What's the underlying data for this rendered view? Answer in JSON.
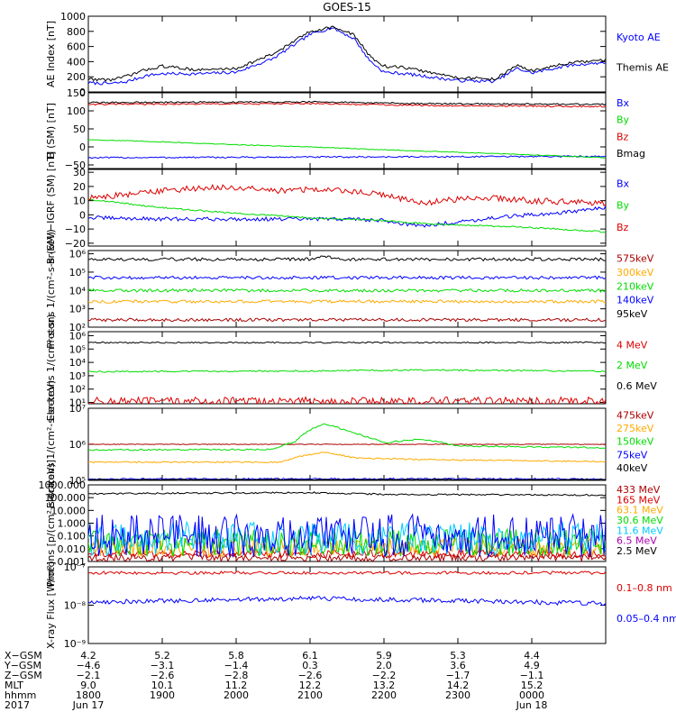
{
  "title": "GOES-15",
  "colors": {
    "black": "#000000",
    "blue": "#0000ff",
    "green": "#00dd00",
    "red": "#dd0000",
    "darkred": "#aa0000",
    "orange": "#ffaa00",
    "cyan": "#00ccff",
    "purple": "#aa00aa"
  },
  "chart_data": [
    {
      "type": "line",
      "panel": "ae",
      "ylabel": "AE Index [nT]",
      "ylim": [
        0,
        1000
      ],
      "scale": "linear",
      "yticks": [
        0,
        200,
        400,
        600,
        800,
        1000
      ],
      "yticklabels": [
        "0",
        "200",
        "400",
        "600",
        "800",
        "1000"
      ],
      "series": [
        {
          "name": "Kyoto AE",
          "color": "#0000ff",
          "label_color": "#0000ff",
          "noise": 0.02,
          "x": [
            0,
            0.3,
            0.5,
            0.8,
            1.0,
            1.5,
            2.0,
            2.5,
            3.0,
            3.3,
            3.6,
            3.8,
            4.0,
            4.3,
            4.6,
            5.0,
            5.5,
            5.8,
            6.0,
            6.5,
            7.0
          ],
          "y": [
            120,
            110,
            130,
            220,
            240,
            240,
            260,
            440,
            760,
            850,
            700,
            420,
            260,
            240,
            200,
            150,
            140,
            310,
            250,
            350,
            390
          ]
        },
        {
          "name": "Themis AE",
          "color": "#000000",
          "label_color": "#000000",
          "noise": 0.02,
          "x": [
            0,
            0.3,
            0.5,
            0.8,
            1.0,
            1.5,
            2.0,
            2.5,
            3.0,
            3.3,
            3.6,
            3.8,
            4.0,
            4.3,
            4.6,
            5.0,
            5.5,
            5.8,
            6.0,
            6.5,
            7.0
          ],
          "y": [
            170,
            160,
            200,
            300,
            340,
            290,
            310,
            500,
            800,
            860,
            750,
            480,
            340,
            320,
            260,
            190,
            170,
            350,
            280,
            380,
            420
          ]
        }
      ]
    },
    {
      "type": "line",
      "panel": "bsm",
      "ylabel": "B (SM) [nT]",
      "ylim": [
        -60,
        150
      ],
      "scale": "linear",
      "yticks": [
        -50,
        0,
        50,
        100,
        150
      ],
      "yticklabels": [
        "−50",
        "0",
        "50",
        "100",
        "150"
      ],
      "series": [
        {
          "name": "Bx",
          "color": "#0000ff",
          "label_color": "#0000ff",
          "noise": 0.01,
          "x": [
            0,
            7
          ],
          "y": [
            -30,
            -26
          ]
        },
        {
          "name": "By",
          "color": "#00dd00",
          "label_color": "#00dd00",
          "noise": 0.005,
          "x": [
            0,
            1,
            2,
            3,
            4,
            5,
            6,
            7
          ],
          "y": [
            20,
            14,
            6,
            0,
            -8,
            -15,
            -22,
            -30
          ]
        },
        {
          "name": "Bz",
          "color": "#dd0000",
          "label_color": "#dd0000",
          "noise": 0.01,
          "x": [
            0,
            3,
            4.5,
            7
          ],
          "y": [
            118,
            120,
            115,
            112
          ]
        },
        {
          "name": "Bmag",
          "color": "#000000",
          "label_color": "#000000",
          "noise": 0.01,
          "x": [
            0,
            3,
            4.5,
            7
          ],
          "y": [
            123,
            125,
            120,
            118
          ]
        }
      ]
    },
    {
      "type": "line",
      "panel": "bigrf",
      "ylabel": "B (SM)−IGRF (SM) [nT]",
      "ylim": [
        -22,
        32
      ],
      "scale": "linear",
      "yticks": [
        -20,
        -10,
        0,
        10,
        20,
        30
      ],
      "yticklabels": [
        "−20",
        "−10",
        "0",
        "10",
        "20",
        "30"
      ],
      "series": [
        {
          "name": "Bx",
          "color": "#0000ff",
          "label_color": "#0000ff",
          "noise": 0.025,
          "x": [
            0,
            1,
            2,
            3,
            3.6,
            4,
            4.5,
            5,
            5.5,
            6,
            6.5,
            7
          ],
          "y": [
            -2,
            -3,
            -3,
            -3,
            -3,
            -4,
            -8,
            -5,
            -2,
            0,
            2,
            5
          ]
        },
        {
          "name": "By",
          "color": "#00dd00",
          "label_color": "#00dd00",
          "noise": 0.01,
          "x": [
            0,
            1,
            2,
            3,
            4,
            4.5,
            5,
            6,
            7
          ],
          "y": [
            11,
            5,
            1,
            -2,
            -4,
            -6,
            -7,
            -9,
            -12
          ]
        },
        {
          "name": "Bz",
          "color": "#dd0000",
          "label_color": "#dd0000",
          "noise": 0.04,
          "x": [
            0,
            0.5,
            1,
            1.5,
            2,
            2.5,
            3,
            3.5,
            4,
            4.5,
            5,
            5.5,
            6,
            6.5,
            7
          ],
          "y": [
            12,
            14,
            17,
            19,
            19,
            17,
            18,
            17,
            14,
            8,
            11,
            12,
            10,
            9,
            8
          ]
        }
      ]
    },
    {
      "type": "line",
      "panel": "protons1",
      "ylabel": "Protons 1/(cm²-s-sr-keV)",
      "ylim": [
        100,
        1500000
      ],
      "scale": "log",
      "yticks": [
        100,
        1000,
        10000,
        100000,
        1000000
      ],
      "yticklabels": [
        "10²",
        "10³",
        "10⁴",
        "10⁵",
        "10⁶"
      ],
      "series": [
        {
          "name": "575keV",
          "color": "#aa0000",
          "label_color": "#aa0000",
          "noise": 0.02,
          "x": [
            0,
            7
          ],
          "y": [
            250,
            250
          ]
        },
        {
          "name": "300keV",
          "color": "#ffaa00",
          "label_color": "#ffaa00",
          "noise": 0.02,
          "x": [
            0,
            7
          ],
          "y": [
            2500,
            2500
          ]
        },
        {
          "name": "210keV",
          "color": "#00dd00",
          "label_color": "#00dd00",
          "noise": 0.02,
          "x": [
            0,
            7
          ],
          "y": [
            10000,
            10000
          ]
        },
        {
          "name": "140keV",
          "color": "#0000ff",
          "label_color": "#0000ff",
          "noise": 0.02,
          "x": [
            0,
            7
          ],
          "y": [
            50000,
            50000
          ]
        },
        {
          "name": "95keV",
          "color": "#000000",
          "label_color": "#000000",
          "noise": 0.02,
          "x": [
            0,
            3,
            3.2,
            3.4,
            7
          ],
          "y": [
            500000,
            500000,
            750000,
            500000,
            500000
          ]
        }
      ]
    },
    {
      "type": "line",
      "panel": "electrons1",
      "ylabel": "Electrons 1/(cm²-s-sr)",
      "ylim": [
        8,
        2000000
      ],
      "scale": "log",
      "yticks": [
        10,
        100,
        1000,
        10000,
        100000,
        1000000
      ],
      "yticklabels": [
        "10¹",
        "10²",
        "10³",
        "10⁴",
        "10⁵",
        "10⁶"
      ],
      "series": [
        {
          "name": "4 MeV",
          "color": "#dd0000",
          "label_color": "#dd0000",
          "noise": 0.06,
          "x": [
            0,
            7
          ],
          "y": [
            12,
            12
          ]
        },
        {
          "name": "2 MeV",
          "color": "#00dd00",
          "label_color": "#00dd00",
          "noise": 0.01,
          "x": [
            0,
            3,
            4.5,
            7
          ],
          "y": [
            2000,
            2300,
            2700,
            2200
          ]
        },
        {
          "name": "0.6 MeV",
          "color": "#000000",
          "label_color": "#000000",
          "noise": 0.01,
          "x": [
            0,
            7
          ],
          "y": [
            300000,
            310000
          ]
        }
      ]
    },
    {
      "type": "line",
      "panel": "electrons2",
      "ylabel": "Electrons 1/(cm²-s-sr-keV)",
      "ylim": [
        100000,
        10000000
      ],
      "scale": "log",
      "yticks": [
        100000,
        1000000,
        10000000
      ],
      "yticklabels": [
        "10⁵",
        "10⁶",
        "10⁷"
      ],
      "series": [
        {
          "name": "475keV",
          "color": "#aa0000",
          "label_color": "#aa0000",
          "noise": 0.005,
          "x": [
            0,
            7
          ],
          "y": [
            1000000,
            1000000
          ]
        },
        {
          "name": "275keV",
          "color": "#ffaa00",
          "label_color": "#ffaa00",
          "noise": 0.01,
          "x": [
            0,
            2.6,
            2.9,
            3.2,
            3.6,
            4.5,
            7
          ],
          "y": [
            320000,
            320000,
            480000,
            600000,
            420000,
            380000,
            330000
          ]
        },
        {
          "name": "150keV",
          "color": "#00dd00",
          "label_color": "#00dd00",
          "noise": 0.01,
          "x": [
            0,
            2.5,
            2.8,
            3.0,
            3.2,
            3.6,
            4.0,
            4.5,
            5.0,
            7
          ],
          "y": [
            700000,
            720000,
            1200000,
            2500000,
            3600000,
            2000000,
            1100000,
            1400000,
            900000,
            800000
          ]
        },
        {
          "name": "75keV",
          "color": "#0000ff",
          "label_color": "#0000ff",
          "noise": 0.01,
          "x": [
            0,
            7
          ],
          "y": [
            110000,
            110000
          ]
        },
        {
          "name": "40keV",
          "color": "#000000",
          "label_color": "#000000",
          "noise": 0.005,
          "x": [
            0,
            7
          ],
          "y": [
            105000,
            105000
          ]
        }
      ]
    },
    {
      "type": "line",
      "panel": "protons2",
      "ylabel": "Protons [p/(cm²-s-sr-keV)]",
      "ylim": [
        0.001,
        1000
      ],
      "scale": "log",
      "yticks": [
        0.001,
        0.01,
        0.1,
        1,
        10,
        100,
        1000
      ],
      "yticklabels": [
        "0.001",
        "0.010",
        "0.100",
        "1.000",
        "10.000",
        "100.000",
        "1000.000"
      ],
      "series": [
        {
          "name": "433 MeV",
          "color": "#aa0000",
          "label_color": "#aa0000",
          "noise": 0.05,
          "x": [
            0,
            7
          ],
          "y": [
            0.002,
            0.002
          ]
        },
        {
          "name": "165 MeV",
          "color": "#dd0000",
          "label_color": "#dd0000",
          "noise": 0.05,
          "x": [
            0,
            7
          ],
          "y": [
            0.004,
            0.004
          ]
        },
        {
          "name": "63.1 MeV",
          "color": "#ffaa00",
          "label_color": "#ffaa00",
          "noise": 0.12,
          "x": [
            0,
            7
          ],
          "y": [
            0.012,
            0.012
          ]
        },
        {
          "name": "30.6 MeV",
          "color": "#00dd00",
          "label_color": "#00dd00",
          "noise": 0.18,
          "x": [
            0,
            7
          ],
          "y": [
            0.03,
            0.03
          ]
        },
        {
          "name": "11.6 MeV",
          "color": "#00ccff",
          "label_color": "#00ccff",
          "noise": 0.22,
          "x": [
            0,
            7
          ],
          "y": [
            0.06,
            0.06
          ]
        },
        {
          "name": "6.5 MeV",
          "color": "#0000ff",
          "label_color": "#aa00aa",
          "noise": 0.28,
          "x": [
            0,
            7
          ],
          "y": [
            0.1,
            0.1
          ]
        },
        {
          "name": "2.5 MeV",
          "color": "#000000",
          "label_color": "#000000",
          "noise": 0.01,
          "x": [
            0,
            3,
            4,
            7
          ],
          "y": [
            200,
            250,
            180,
            160
          ]
        }
      ]
    },
    {
      "type": "line",
      "panel": "xray",
      "ylabel": "X-ray Flux [W/m²]",
      "ylim": [
        1e-09,
        1e-07
      ],
      "scale": "log",
      "yticks": [
        1e-09,
        1e-08,
        1e-07
      ],
      "yticklabels": [
        "10⁻⁹",
        "10⁻⁸",
        "10⁻⁷"
      ],
      "series": [
        {
          "name": "0.1–0.8 nm",
          "color": "#dd0000",
          "label_color": "#dd0000",
          "noise": 0.02,
          "x": [
            0,
            7
          ],
          "y": [
            7e-08,
            7e-08
          ]
        },
        {
          "name": "0.05–0.4 nm",
          "color": "#0000ff",
          "label_color": "#0000ff",
          "noise": 0.03,
          "x": [
            0,
            3,
            7
          ],
          "y": [
            1.2e-08,
            1.5e-08,
            1.1e-08
          ]
        }
      ]
    }
  ],
  "x_axis": {
    "x_start": 0,
    "x_end": 7,
    "row_labels": [
      "X−GSM",
      "Y−GSM",
      "Z−GSM",
      "MLT",
      "hhmm",
      "2017"
    ],
    "columns": [
      {
        "x": 0,
        "values": [
          "4.2",
          "−4.6",
          "−2.1",
          "9.0",
          "1800",
          "Jun 17"
        ]
      },
      {
        "x": 1,
        "values": [
          "5.2",
          "−3.1",
          "−2.6",
          "10.1",
          "1900",
          ""
        ]
      },
      {
        "x": 2,
        "values": [
          "5.8",
          "−1.4",
          "−2.8",
          "11.2",
          "2000",
          ""
        ]
      },
      {
        "x": 3,
        "values": [
          "6.1",
          "0.3",
          "−2.6",
          "12.2",
          "2100",
          ""
        ]
      },
      {
        "x": 4,
        "values": [
          "5.9",
          "2.0",
          "−2.2",
          "13.2",
          "2200",
          ""
        ]
      },
      {
        "x": 5,
        "values": [
          "5.3",
          "3.6",
          "−1.7",
          "14.2",
          "2300",
          ""
        ]
      },
      {
        "x": 6,
        "values": [
          "4.4",
          "4.9",
          "−1.1",
          "15.2",
          "0000",
          "Jun 18"
        ]
      }
    ]
  }
}
